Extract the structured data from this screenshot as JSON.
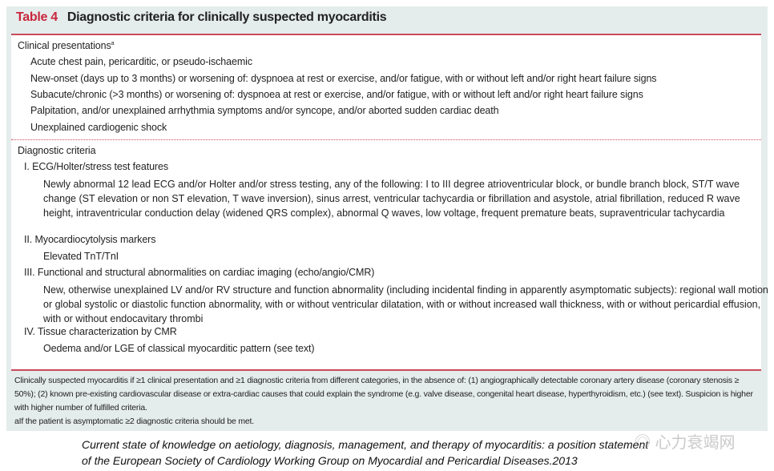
{
  "table": {
    "number": "Table 4",
    "title": "Diagnostic criteria for clinically suspected myocarditis"
  },
  "clinical": {
    "heading": "Clinical presentations",
    "sup": "a",
    "items": [
      "Acute chest pain, pericarditic, or pseudo-ischaemic",
      "New-onset (days up to 3 months) or worsening of: dyspnoea at rest or exercise, and/or fatigue, with or without left and/or right heart failure signs",
      "Subacute/chronic (>3 months) or worsening of: dyspnoea at rest or exercise, and/or fatigue, with or without left and/or right heart failure signs",
      "Palpitation, and/or unexplained arrhythmia symptoms and/or syncope, and/or aborted sudden cardiac death",
      "Unexplained cardiogenic shock"
    ]
  },
  "diagnostic": {
    "heading": "Diagnostic criteria",
    "sections": [
      {
        "title": "I. ECG/Holter/stress test features",
        "text": "Newly abnormal 12 lead ECG and/or Holter and/or stress testing, any of the following: I to III degree atrioventricular block, or bundle branch block, ST/T wave change (ST elevation or non ST elevation, T wave inversion), sinus arrest, ventricular tachycardia or fibrillation and asystole, atrial fibrillation, reduced R wave height, intraventricular conduction delay (widened QRS complex), abnormal Q waves, low voltage, frequent premature beats, supraventricular tachycardia"
      },
      {
        "title": "II. Myocardiocytolysis markers",
        "text": "Elevated TnT/TnI"
      },
      {
        "title": "III. Functional and structural abnormalities on cardiac imaging (echo/angio/CMR)",
        "text": "New, otherwise unexplained LV and/or RV structure and function abnormality (including incidental finding in apparently asymptomatic subjects): regional wall motion or global systolic or diastolic function abnormality, with or without ventricular dilatation, with or without increased wall thickness, with or without pericardial effusion, with or without endocavitary thrombi"
      },
      {
        "title": "IV. Tissue characterization by CMR",
        "text": "Oedema and/or LGE of classical myocarditic pattern (see text)"
      }
    ]
  },
  "footnote": {
    "main": "Clinically suspected myocarditis if ≥1 clinical presentation and ≥1 diagnostic criteria from different categories, in the absence of: (1) angiographically detectable coronary artery disease (coronary stenosis ≥ 50%); (2) known pre-existing cardiovascular disease or extra-cardiac causes that could explain the syndrome (e.g. valve disease, congenital heart disease, hyperthyroidism, etc.) (see text). Suspicion is higher with higher number of fulfilled criteria.",
    "a": "aIf the patient is asymptomatic ≥2 diagnostic criteria should be met."
  },
  "caption": [
    "Current state of knowledge on aetiology, diagnosis, management, and therapy of myocarditis: a position statement",
    "of the European Society of Cardiology Working Group on Myocardial and Pericardial Diseases.2013"
  ],
  "watermark": "心力衰竭网",
  "colors": {
    "accent": "#c8263c",
    "background": "#e5ecec"
  }
}
